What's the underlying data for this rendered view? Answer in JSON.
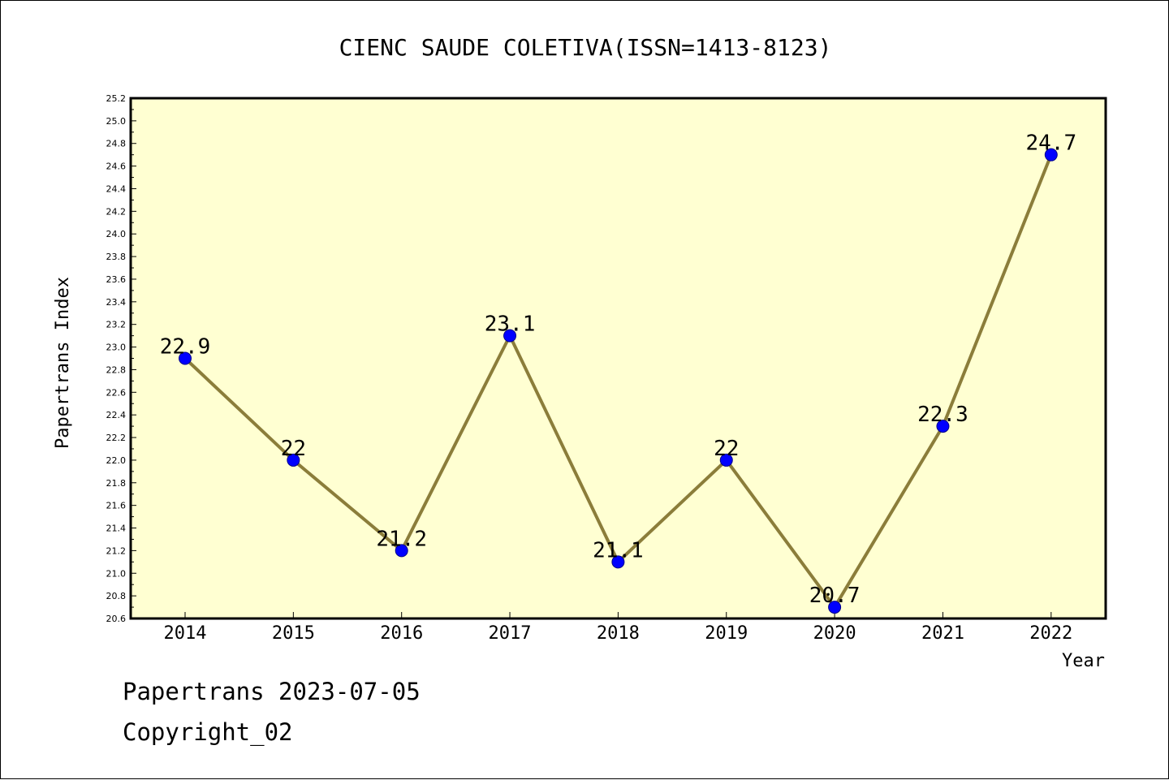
{
  "chart_data": {
    "type": "line",
    "title": "CIENC SAUDE COLETIVA(ISSN=1413-8123)",
    "xlabel": "Year",
    "ylabel": "Papertrans Index",
    "categories": [
      "2014",
      "2015",
      "2016",
      "2017",
      "2018",
      "2019",
      "2020",
      "2021",
      "2022"
    ],
    "series": [
      {
        "values": [
          22.9,
          22.0,
          21.2,
          23.1,
          21.1,
          22.0,
          20.7,
          22.3,
          24.7
        ],
        "data_labels": [
          "22.9",
          "22",
          "21.2",
          "23.1",
          "21.1",
          "22",
          "20.7",
          "22.3",
          "24.7"
        ]
      }
    ],
    "ylim": [
      20.6,
      25.2
    ],
    "yticks": [
      "20.6",
      "20.8",
      "21.0",
      "21.2",
      "21.4",
      "21.6",
      "21.8",
      "22.0",
      "22.2",
      "22.4",
      "22.6",
      "22.8",
      "23.0",
      "23.2",
      "23.4",
      "23.6",
      "23.8",
      "24.0",
      "24.2",
      "24.4",
      "24.6",
      "24.8",
      "25.0",
      "25.2"
    ],
    "grid": false,
    "colors": {
      "plot_background": "#ffffd2",
      "line": "#8b7d3a",
      "marker_fill": "#0000ff",
      "marker_stroke": "#00008b"
    }
  },
  "footer": {
    "line1": "Papertrans 2023-07-05",
    "line2": "Copyright_02"
  }
}
